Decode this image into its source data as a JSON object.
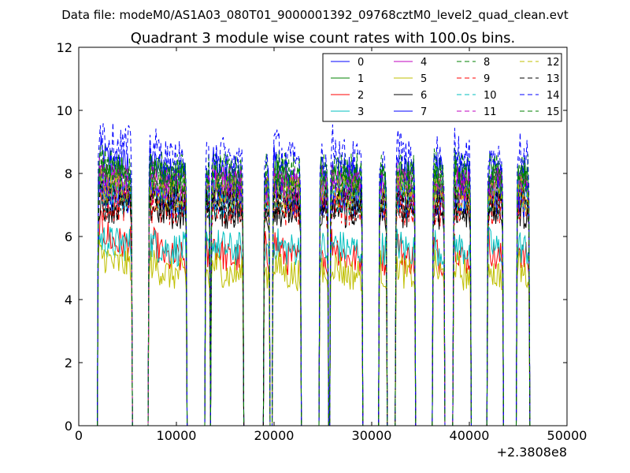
{
  "chart_data": {
    "type": "line",
    "suptitle": "Data file: modeM0/AS1A03_080T01_9000001392_09768cztM0_level2_quad_clean.evt",
    "title": "Quadrant 3 module wise count rates with 100.0s bins.",
    "xlabel": "",
    "ylabel": "",
    "x_offset_label": "+2.3808e8",
    "xlim": [
      0,
      50000
    ],
    "ylim": [
      0,
      12
    ],
    "x_ticks": [
      0,
      10000,
      20000,
      30000,
      40000,
      50000
    ],
    "x_tick_labels": [
      "0",
      "10000",
      "20000",
      "30000",
      "40000",
      "50000"
    ],
    "y_ticks": [
      0,
      2,
      4,
      6,
      8,
      10,
      12
    ],
    "y_tick_labels": [
      "0",
      "2",
      "4",
      "6",
      "8",
      "10",
      "12"
    ],
    "grid": false,
    "legend_position": "top-right",
    "legend_columns": 4,
    "bin_seconds": 100,
    "observation_segments": [
      [
        2000,
        5400
      ],
      [
        7200,
        11000
      ],
      [
        13000,
        13400
      ],
      [
        13600,
        16800
      ],
      [
        19000,
        19500
      ],
      [
        19900,
        22700
      ],
      [
        24700,
        25500
      ],
      [
        25800,
        29000
      ],
      [
        30800,
        31500
      ],
      [
        32500,
        34400
      ],
      [
        36300,
        37400
      ],
      [
        38400,
        40100
      ],
      [
        41900,
        43400
      ],
      [
        44900,
        46100
      ]
    ],
    "series": [
      {
        "name": "0",
        "color": "#0000ff",
        "dash": "solid",
        "level": 7.9,
        "start": 8.3
      },
      {
        "name": "1",
        "color": "#008000",
        "dash": "solid",
        "level": 7.7,
        "start": 7.9
      },
      {
        "name": "2",
        "color": "#ff0000",
        "dash": "solid",
        "level": 5.3,
        "start": 5.9
      },
      {
        "name": "3",
        "color": "#00bfbf",
        "dash": "solid",
        "level": 5.6,
        "start": 5.8
      },
      {
        "name": "4",
        "color": "#bf00bf",
        "dash": "solid",
        "level": 7.5,
        "start": 7.6
      },
      {
        "name": "5",
        "color": "#bfbf00",
        "dash": "solid",
        "level": 4.8,
        "start": 5.2
      },
      {
        "name": "6",
        "color": "#000000",
        "dash": "solid",
        "level": 6.8,
        "start": 7.0
      },
      {
        "name": "7",
        "color": "#0000ff",
        "dash": "solid",
        "level": 7.2,
        "start": 7.4
      },
      {
        "name": "8",
        "color": "#008000",
        "dash": "dashed",
        "level": 8.0,
        "start": 8.2
      },
      {
        "name": "9",
        "color": "#ff0000",
        "dash": "dashed",
        "level": 6.9,
        "start": 7.0
      },
      {
        "name": "10",
        "color": "#00bfbf",
        "dash": "dashed",
        "level": 7.2,
        "start": 7.3
      },
      {
        "name": "11",
        "color": "#bf00bf",
        "dash": "dashed",
        "level": 7.6,
        "start": 7.8
      },
      {
        "name": "12",
        "color": "#bfbf00",
        "dash": "dashed",
        "level": 7.3,
        "start": 7.5
      },
      {
        "name": "13",
        "color": "#000000",
        "dash": "dashed",
        "level": 7.0,
        "start": 7.1
      },
      {
        "name": "14",
        "color": "#0000ff",
        "dash": "dashed",
        "level": 8.4,
        "start": 9.0
      },
      {
        "name": "15",
        "color": "#008000",
        "dash": "dashed",
        "level": 7.8,
        "start": 8.0
      }
    ]
  }
}
